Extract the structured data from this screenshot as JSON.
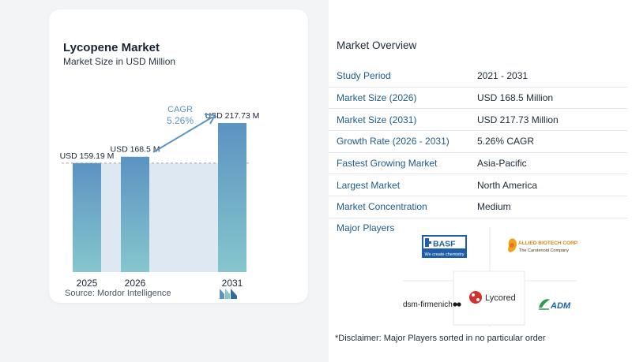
{
  "card": {
    "title": "Lycopene Market",
    "subtitle": "Market Size in USD Million",
    "source": "Source: Mordor Intelligence",
    "cagr_label": "CAGR",
    "cagr_value": "5.26%"
  },
  "chart_data": {
    "type": "bar",
    "categories": [
      "2025",
      "2026",
      "2031"
    ],
    "values": [
      159.19,
      168.5,
      217.73
    ],
    "labels": [
      "USD 159.19 M",
      "USD 168.5 M",
      "USD 217.73 M"
    ],
    "unit": "USD Million",
    "ylim": [
      0,
      217.73
    ],
    "grid": false,
    "colors": {
      "bar_top": "#5b93c2",
      "bar_bottom": "#86c6cd",
      "band": "#dde8f2",
      "arrow": "#5b93c2",
      "dash": "#9aa3ad"
    }
  },
  "overview": {
    "title": "Market Overview",
    "rows": [
      {
        "key": "Study Period",
        "value": "2021 - 2031"
      },
      {
        "key": "Market Size (2026)",
        "value": "USD 168.5 Million"
      },
      {
        "key": "Market Size (2031)",
        "value": "USD 217.73 Million"
      },
      {
        "key": "Growth Rate (2026 - 2031)",
        "value": "5.26% CAGR"
      },
      {
        "key": "Fastest Growing Market",
        "value": "Asia-Pacific"
      },
      {
        "key": "Largest Market",
        "value": "North America"
      },
      {
        "key": "Market Concentration",
        "value": "Medium"
      }
    ],
    "players_title": "Major Players",
    "players": [
      {
        "name": "BASF",
        "tagline": "We create chemistry",
        "logo_icon": "basf-logo-icon"
      },
      {
        "name": "ALLIED BIOTECH CORP",
        "tagline": "The Carotenoid Company",
        "logo_icon": "allied-biotech-logo-icon"
      },
      {
        "name": "dsm-firmenich",
        "logo_icon": "dsm-firmenich-logo-icon"
      },
      {
        "name": "Lycored",
        "logo_icon": "lycored-logo-icon"
      },
      {
        "name": "ADM",
        "logo_icon": "adm-logo-icon"
      }
    ],
    "disclaimer": "*Disclaimer: Major Players sorted in no particular order"
  }
}
